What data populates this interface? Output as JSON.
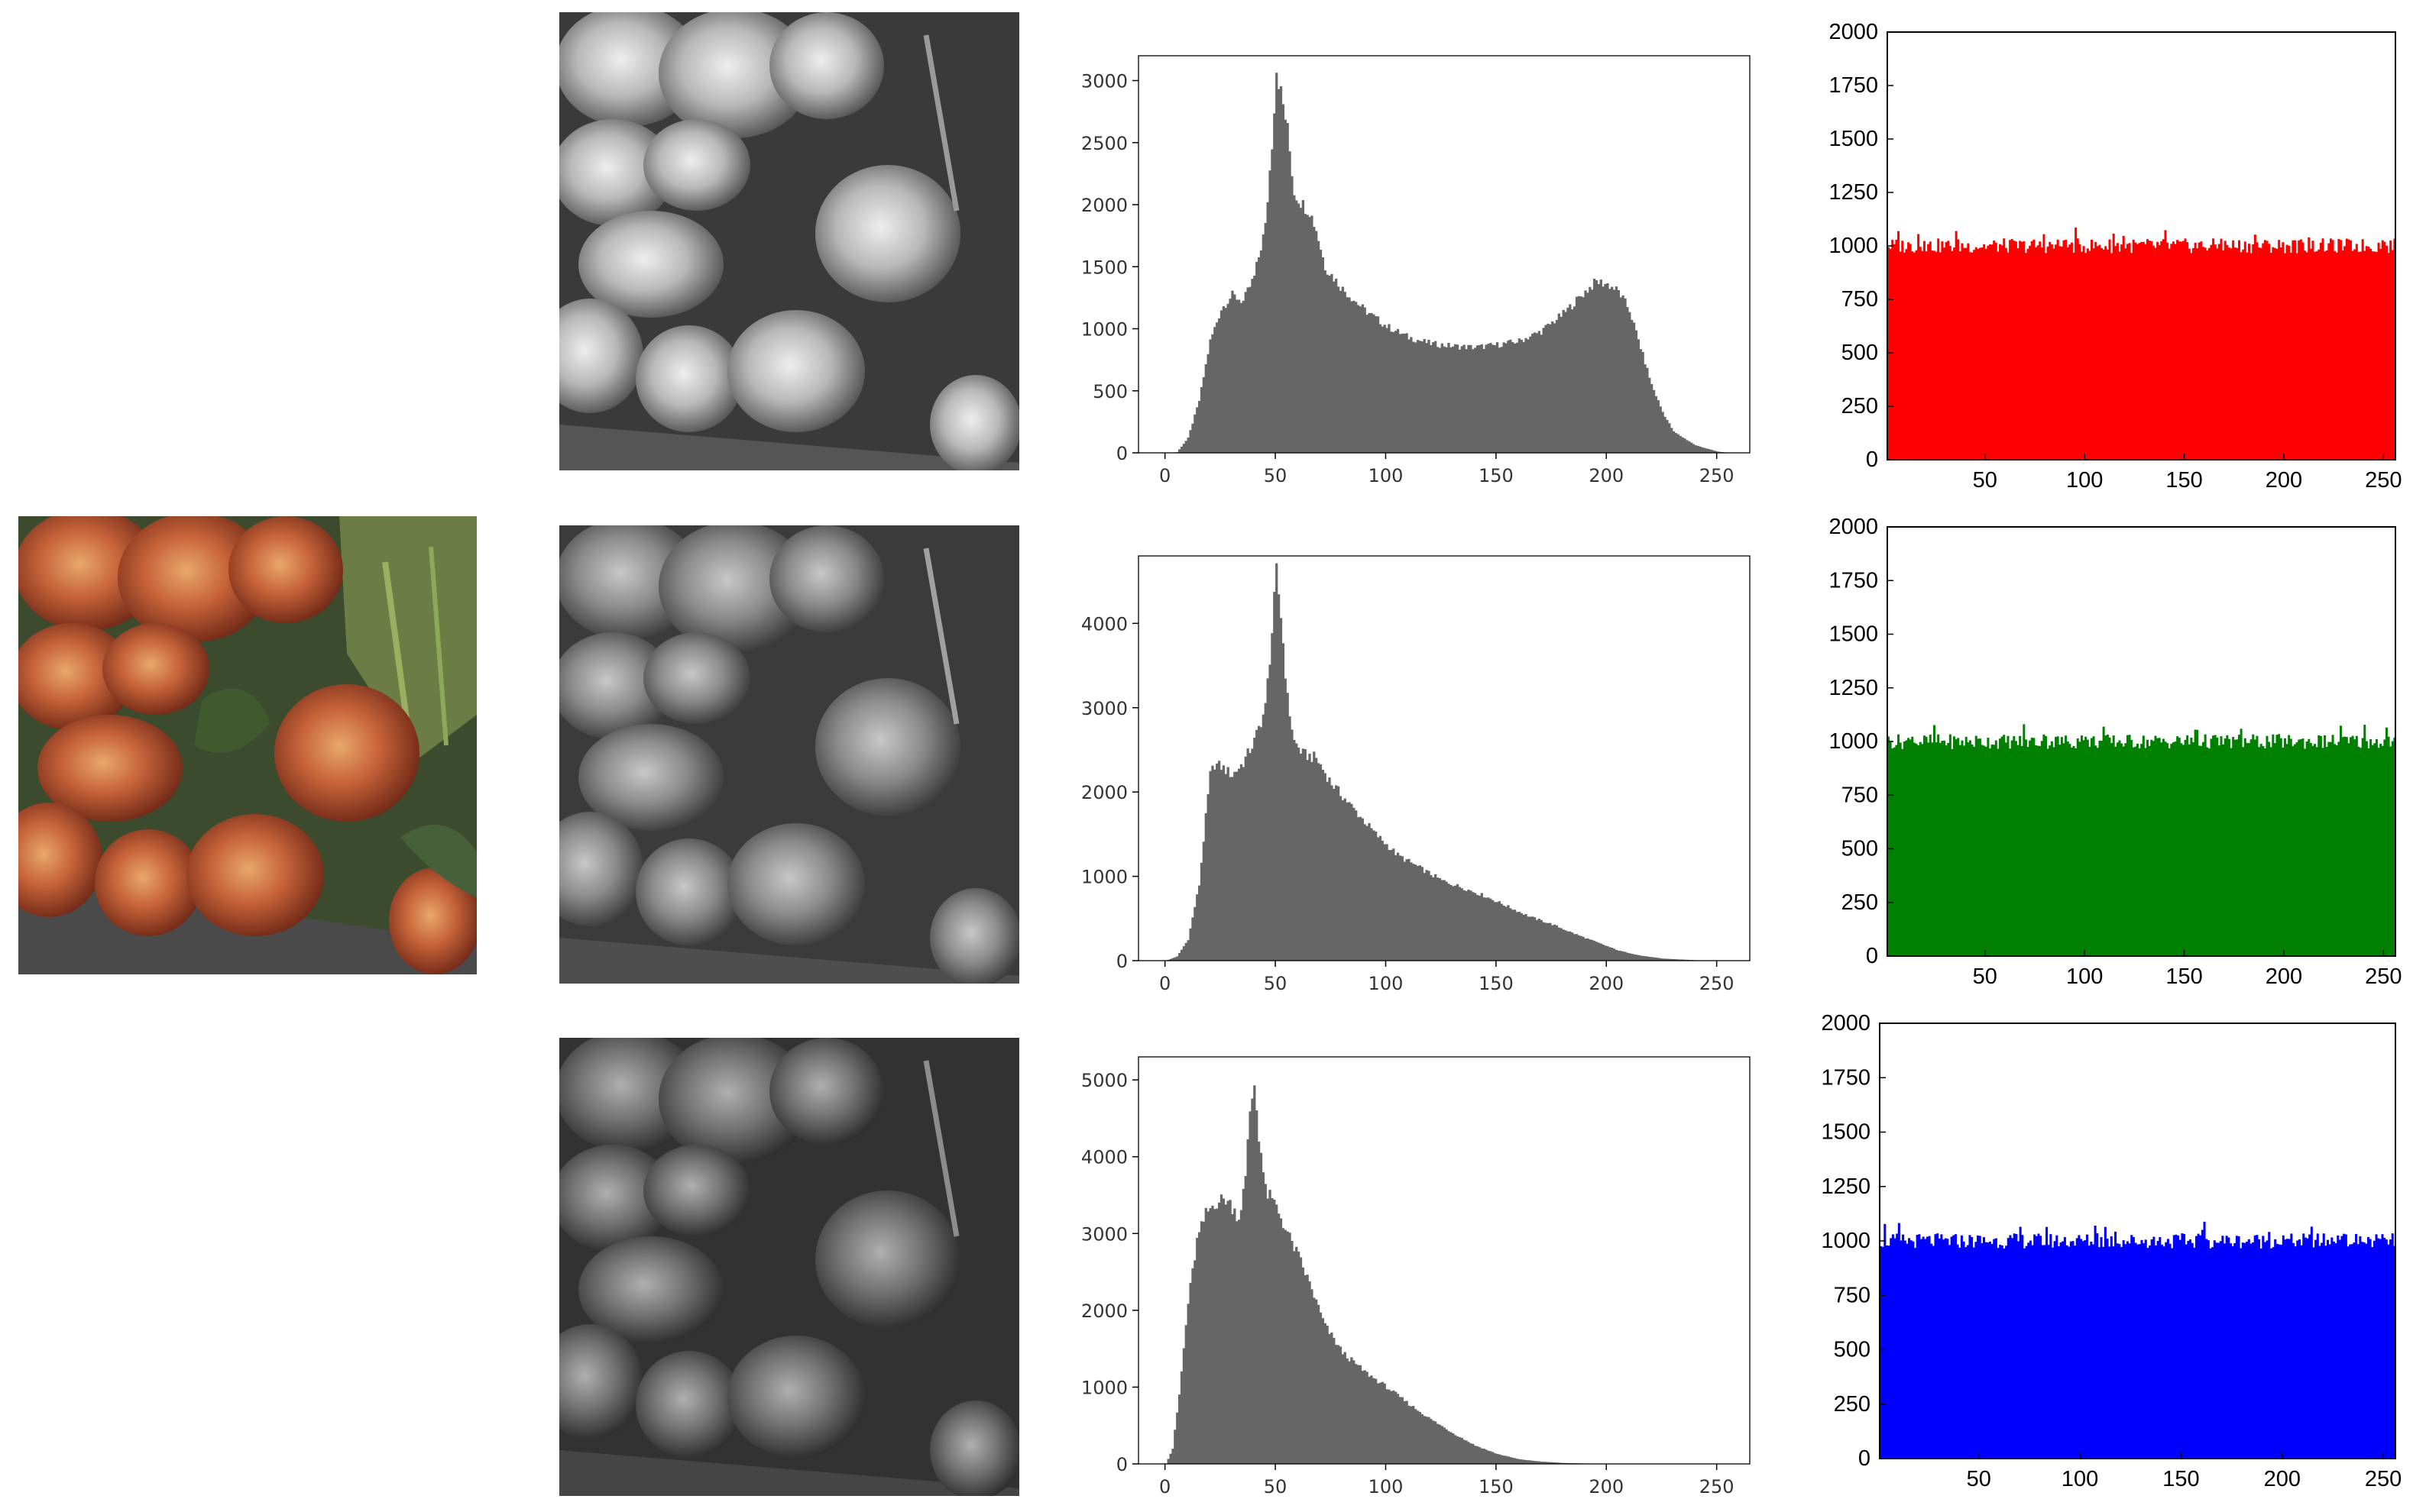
{
  "color_image": {
    "description_icon": "rose-bouquet-color-photo"
  },
  "gray_images": [
    {
      "name": "red-channel-grayscale"
    },
    {
      "name": "green-channel-grayscale"
    },
    {
      "name": "blue-channel-grayscale"
    }
  ],
  "colors": {
    "gray_bar": "#666666",
    "red": "#ff0000",
    "green": "#008000",
    "blue": "#0000ff"
  },
  "chart_data": [
    {
      "type": "bar",
      "style": "histogram",
      "color": "#666666",
      "xlim": [
        -12,
        265
      ],
      "ylim": [
        0,
        3200
      ],
      "xticks": [
        0,
        50,
        100,
        150,
        200,
        250
      ],
      "yticks": [
        0,
        500,
        1000,
        1500,
        2000,
        2500,
        3000
      ],
      "profile": [
        [
          0,
          0
        ],
        [
          5,
          5
        ],
        [
          10,
          120
        ],
        [
          15,
          420
        ],
        [
          20,
          900
        ],
        [
          25,
          1160
        ],
        [
          30,
          1270
        ],
        [
          35,
          1220
        ],
        [
          40,
          1420
        ],
        [
          45,
          1820
        ],
        [
          48,
          2500
        ],
        [
          50,
          3100
        ],
        [
          52,
          2900
        ],
        [
          55,
          2600
        ],
        [
          58,
          2100
        ],
        [
          62,
          2000
        ],
        [
          65,
          1950
        ],
        [
          68,
          1800
        ],
        [
          72,
          1500
        ],
        [
          80,
          1320
        ],
        [
          90,
          1150
        ],
        [
          100,
          1020
        ],
        [
          110,
          930
        ],
        [
          120,
          880
        ],
        [
          130,
          860
        ],
        [
          140,
          850
        ],
        [
          150,
          870
        ],
        [
          160,
          900
        ],
        [
          170,
          980
        ],
        [
          180,
          1120
        ],
        [
          190,
          1300
        ],
        [
          195,
          1380
        ],
        [
          200,
          1360
        ],
        [
          205,
          1300
        ],
        [
          210,
          1150
        ],
        [
          215,
          850
        ],
        [
          220,
          550
        ],
        [
          225,
          330
        ],
        [
          230,
          170
        ],
        [
          240,
          60
        ],
        [
          250,
          10
        ],
        [
          255,
          0
        ]
      ]
    },
    {
      "type": "bar",
      "style": "histogram",
      "color": "#666666",
      "xlim": [
        -12,
        265
      ],
      "ylim": [
        0,
        4800
      ],
      "xticks": [
        0,
        50,
        100,
        150,
        200,
        250
      ],
      "yticks": [
        0,
        1000,
        2000,
        3000,
        4000
      ],
      "profile": [
        [
          0,
          0
        ],
        [
          5,
          50
        ],
        [
          10,
          250
        ],
        [
          15,
          900
        ],
        [
          18,
          1700
        ],
        [
          20,
          2200
        ],
        [
          22,
          2330
        ],
        [
          25,
          2300
        ],
        [
          30,
          2200
        ],
        [
          35,
          2350
        ],
        [
          40,
          2600
        ],
        [
          45,
          3000
        ],
        [
          48,
          3900
        ],
        [
          50,
          4600
        ],
        [
          52,
          4100
        ],
        [
          55,
          3100
        ],
        [
          58,
          2600
        ],
        [
          62,
          2450
        ],
        [
          68,
          2400
        ],
        [
          75,
          2100
        ],
        [
          85,
          1800
        ],
        [
          95,
          1500
        ],
        [
          105,
          1250
        ],
        [
          115,
          1100
        ],
        [
          125,
          950
        ],
        [
          135,
          860
        ],
        [
          145,
          760
        ],
        [
          155,
          640
        ],
        [
          165,
          520
        ],
        [
          175,
          430
        ],
        [
          185,
          320
        ],
        [
          195,
          220
        ],
        [
          205,
          120
        ],
        [
          215,
          60
        ],
        [
          225,
          25
        ],
        [
          240,
          5
        ],
        [
          255,
          0
        ]
      ]
    },
    {
      "type": "bar",
      "style": "histogram",
      "color": "#666666",
      "xlim": [
        -12,
        265
      ],
      "ylim": [
        0,
        5300
      ],
      "xticks": [
        0,
        50,
        100,
        150,
        200,
        250
      ],
      "yticks": [
        0,
        1000,
        2000,
        3000,
        4000,
        5000
      ],
      "profile": [
        [
          0,
          0
        ],
        [
          3,
          200
        ],
        [
          6,
          900
        ],
        [
          10,
          2100
        ],
        [
          14,
          2900
        ],
        [
          18,
          3250
        ],
        [
          22,
          3400
        ],
        [
          27,
          3450
        ],
        [
          30,
          3350
        ],
        [
          33,
          3200
        ],
        [
          36,
          3700
        ],
        [
          38,
          4600
        ],
        [
          40,
          4950
        ],
        [
          42,
          4300
        ],
        [
          45,
          3550
        ],
        [
          50,
          3350
        ],
        [
          55,
          3000
        ],
        [
          60,
          2700
        ],
        [
          65,
          2350
        ],
        [
          72,
          1800
        ],
        [
          80,
          1450
        ],
        [
          90,
          1200
        ],
        [
          100,
          1000
        ],
        [
          110,
          780
        ],
        [
          120,
          580
        ],
        [
          130,
          400
        ],
        [
          140,
          240
        ],
        [
          150,
          130
        ],
        [
          160,
          60
        ],
        [
          170,
          30
        ],
        [
          180,
          12
        ],
        [
          190,
          5
        ],
        [
          200,
          0
        ]
      ]
    },
    {
      "type": "bar",
      "style": "histogram",
      "color": "#ff0000",
      "xlim": [
        1,
        256
      ],
      "ylim": [
        0,
        2000
      ],
      "xticks": [
        50,
        100,
        150,
        200,
        250
      ],
      "yticks": [
        0,
        250,
        500,
        750,
        1000,
        1250,
        1500,
        1750,
        2000
      ],
      "level": 1000,
      "jitter": 35
    },
    {
      "type": "bar",
      "style": "histogram",
      "color": "#008000",
      "xlim": [
        1,
        256
      ],
      "ylim": [
        0,
        2000
      ],
      "xticks": [
        50,
        100,
        150,
        200,
        250
      ],
      "yticks": [
        0,
        250,
        500,
        750,
        1000,
        1250,
        1500,
        1750,
        2000
      ],
      "level": 1000,
      "jitter": 35
    },
    {
      "type": "bar",
      "style": "histogram",
      "color": "#0000ff",
      "xlim": [
        1,
        256
      ],
      "ylim": [
        0,
        2000
      ],
      "xticks": [
        50,
        100,
        150,
        200,
        250
      ],
      "yticks": [
        0,
        250,
        500,
        750,
        1000,
        1250,
        1500,
        1750,
        2000
      ],
      "level": 1000,
      "jitter": 35
    }
  ]
}
